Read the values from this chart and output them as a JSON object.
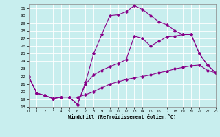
{
  "xlabel": "Windchill (Refroidissement éolien,°C)",
  "background_color": "#c8eeee",
  "line_color": "#880088",
  "xlim": [
    0,
    23
  ],
  "ylim": [
    18,
    31.5
  ],
  "yticks": [
    18,
    19,
    20,
    21,
    22,
    23,
    24,
    25,
    26,
    27,
    28,
    29,
    30,
    31
  ],
  "xticks": [
    0,
    1,
    2,
    3,
    4,
    5,
    6,
    7,
    8,
    9,
    10,
    11,
    12,
    13,
    14,
    15,
    16,
    17,
    18,
    19,
    20,
    21,
    22,
    23
  ],
  "series1_x": [
    0,
    1,
    2,
    3,
    4,
    5,
    6,
    7,
    8,
    9,
    10,
    11,
    12,
    13,
    14,
    15,
    16,
    17,
    18,
    19,
    20,
    21,
    22,
    23
  ],
  "series1_y": [
    22,
    19.8,
    19.5,
    19.1,
    19.3,
    19.3,
    18.3,
    21.2,
    25.0,
    27.5,
    30.0,
    30.1,
    30.5,
    31.3,
    30.8,
    30.0,
    29.2,
    28.8,
    28.0,
    27.5,
    27.5,
    25.0,
    23.5,
    22.5
  ],
  "series2_x": [
    0,
    1,
    2,
    3,
    4,
    5,
    6,
    7,
    8,
    9,
    10,
    11,
    12,
    13,
    14,
    15,
    16,
    17,
    18,
    19,
    20,
    21,
    22,
    23
  ],
  "series2_y": [
    22,
    19.8,
    19.5,
    19.1,
    19.3,
    19.3,
    18.3,
    21.0,
    22.2,
    22.8,
    23.3,
    23.7,
    24.2,
    27.3,
    27.0,
    26.0,
    26.6,
    27.2,
    27.3,
    27.5,
    27.5,
    25.0,
    23.5,
    22.5
  ],
  "series3_x": [
    0,
    1,
    2,
    3,
    4,
    5,
    6,
    7,
    8,
    9,
    10,
    11,
    12,
    13,
    14,
    15,
    16,
    17,
    18,
    19,
    20,
    21,
    22,
    23
  ],
  "series3_y": [
    22,
    19.8,
    19.5,
    19.1,
    19.3,
    19.3,
    19.3,
    19.6,
    20.0,
    20.5,
    21.0,
    21.3,
    21.6,
    21.8,
    22.0,
    22.2,
    22.5,
    22.7,
    23.0,
    23.2,
    23.4,
    23.5,
    22.8,
    22.5
  ]
}
